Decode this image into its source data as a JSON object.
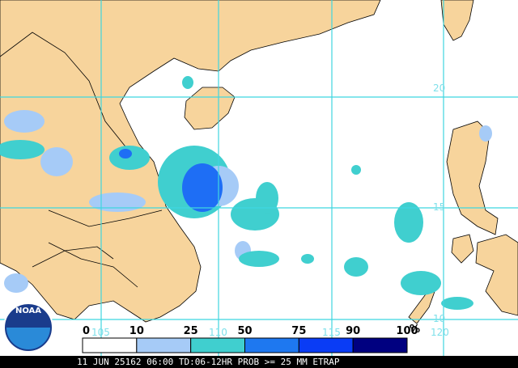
{
  "map": {
    "lat_labels": [
      "20",
      "15",
      "10"
    ],
    "lon_labels": [
      "105",
      "110",
      "115",
      "120"
    ],
    "legend": {
      "labels": [
        "0",
        "10",
        "25",
        "50",
        "75",
        "90",
        "100"
      ],
      "unit": "%",
      "colors": [
        "#ffffff",
        "#a6cbf7",
        "#40cfcf",
        "#1e78f0",
        "#0a3cf5",
        "#000080"
      ]
    },
    "logo": "NOAA",
    "footer": "11 JUN 25162 06:00 TD:06-12HR PROB >= 25 MM ETRAP"
  }
}
